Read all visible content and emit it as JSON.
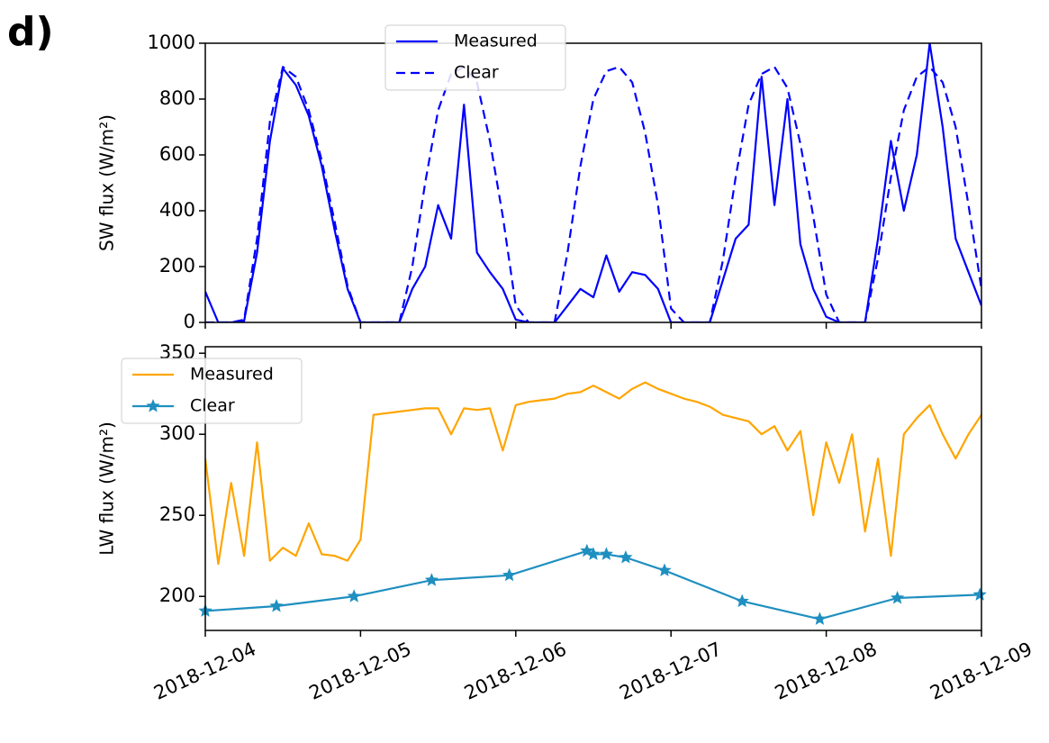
{
  "panel_label": "d)",
  "chart_data": [
    {
      "type": "line",
      "ylabel": "SW flux (W/m²)",
      "legend": "upper center",
      "xlim": [
        "2018-12-04",
        "2018-12-09"
      ],
      "xticks": [
        "2018-12-04",
        "2018-12-05",
        "2018-12-06",
        "2018-12-07",
        "2018-12-08",
        "2018-12-09"
      ],
      "ylim": [
        0,
        1000
      ],
      "yticks": [
        0,
        200,
        400,
        600,
        800,
        1000
      ],
      "x": [
        "2018-12-04 00:00",
        "2018-12-04 02:00",
        "2018-12-04 04:00",
        "2018-12-04 06:00",
        "2018-12-04 08:00",
        "2018-12-04 10:00",
        "2018-12-04 12:00",
        "2018-12-04 14:00",
        "2018-12-04 16:00",
        "2018-12-04 18:00",
        "2018-12-04 20:00",
        "2018-12-04 22:00",
        "2018-12-05 00:00",
        "2018-12-05 02:00",
        "2018-12-05 04:00",
        "2018-12-05 06:00",
        "2018-12-05 08:00",
        "2018-12-05 10:00",
        "2018-12-05 12:00",
        "2018-12-05 14:00",
        "2018-12-05 16:00",
        "2018-12-05 18:00",
        "2018-12-05 20:00",
        "2018-12-05 22:00",
        "2018-12-06 00:00",
        "2018-12-06 02:00",
        "2018-12-06 04:00",
        "2018-12-06 06:00",
        "2018-12-06 08:00",
        "2018-12-06 10:00",
        "2018-12-06 12:00",
        "2018-12-06 14:00",
        "2018-12-06 16:00",
        "2018-12-06 18:00",
        "2018-12-06 20:00",
        "2018-12-06 22:00",
        "2018-12-07 00:00",
        "2018-12-07 02:00",
        "2018-12-07 04:00",
        "2018-12-07 06:00",
        "2018-12-07 08:00",
        "2018-12-07 10:00",
        "2018-12-07 12:00",
        "2018-12-07 14:00",
        "2018-12-07 16:00",
        "2018-12-07 18:00",
        "2018-12-07 20:00",
        "2018-12-07 22:00",
        "2018-12-08 00:00",
        "2018-12-08 02:00",
        "2018-12-08 04:00",
        "2018-12-08 06:00",
        "2018-12-08 08:00",
        "2018-12-08 10:00",
        "2018-12-08 12:00",
        "2018-12-08 14:00",
        "2018-12-08 16:00",
        "2018-12-08 18:00",
        "2018-12-08 20:00",
        "2018-12-08 22:00",
        "2018-12-09 00:00"
      ],
      "series": [
        {
          "name": "Measured",
          "color": "#0000ff",
          "linestyle": "solid",
          "values": [
            110,
            0,
            0,
            5,
            250,
            650,
            910,
            850,
            740,
            560,
            330,
            120,
            0,
            0,
            0,
            0,
            120,
            200,
            420,
            300,
            780,
            250,
            180,
            120,
            10,
            0,
            0,
            0,
            60,
            120,
            90,
            240,
            110,
            180,
            170,
            120,
            0,
            0,
            0,
            0,
            150,
            300,
            350,
            880,
            420,
            800,
            280,
            120,
            20,
            0,
            0,
            0,
            300,
            650,
            400,
            600,
            1000,
            700,
            300,
            180,
            60
          ]
        },
        {
          "name": "Clear",
          "color": "#0000ff",
          "linestyle": "dashed",
          "values": [
            0,
            0,
            0,
            10,
            300,
            720,
            915,
            880,
            760,
            580,
            360,
            130,
            0,
            0,
            0,
            0,
            200,
            500,
            760,
            890,
            915,
            860,
            650,
            380,
            60,
            0,
            0,
            0,
            250,
            560,
            800,
            900,
            915,
            860,
            680,
            420,
            50,
            0,
            0,
            0,
            220,
            520,
            780,
            890,
            915,
            840,
            640,
            380,
            100,
            0,
            0,
            0,
            230,
            520,
            760,
            880,
            915,
            860,
            700,
            420,
            120
          ]
        }
      ]
    },
    {
      "type": "line",
      "ylabel": "LW flux (W/m²)",
      "legend": "upper left",
      "xlim": [
        "2018-12-04",
        "2018-12-09"
      ],
      "xticks": [
        "2018-12-04",
        "2018-12-05",
        "2018-12-06",
        "2018-12-07",
        "2018-12-08",
        "2018-12-09"
      ],
      "ylim": [
        179,
        354
      ],
      "yticks": [
        200,
        250,
        300,
        350
      ],
      "x": [
        "2018-12-04 00:00",
        "2018-12-04 02:00",
        "2018-12-04 04:00",
        "2018-12-04 06:00",
        "2018-12-04 08:00",
        "2018-12-04 10:00",
        "2018-12-04 12:00",
        "2018-12-04 14:00",
        "2018-12-04 16:00",
        "2018-12-04 18:00",
        "2018-12-04 20:00",
        "2018-12-04 22:00",
        "2018-12-05 00:00",
        "2018-12-05 02:00",
        "2018-12-05 04:00",
        "2018-12-05 06:00",
        "2018-12-05 08:00",
        "2018-12-05 10:00",
        "2018-12-05 12:00",
        "2018-12-05 14:00",
        "2018-12-05 16:00",
        "2018-12-05 18:00",
        "2018-12-05 20:00",
        "2018-12-05 22:00",
        "2018-12-06 00:00",
        "2018-12-06 02:00",
        "2018-12-06 04:00",
        "2018-12-06 06:00",
        "2018-12-06 08:00",
        "2018-12-06 10:00",
        "2018-12-06 12:00",
        "2018-12-06 14:00",
        "2018-12-06 16:00",
        "2018-12-06 18:00",
        "2018-12-06 20:00",
        "2018-12-06 22:00",
        "2018-12-07 00:00",
        "2018-12-07 02:00",
        "2018-12-07 04:00",
        "2018-12-07 06:00",
        "2018-12-07 08:00",
        "2018-12-07 10:00",
        "2018-12-07 12:00",
        "2018-12-07 14:00",
        "2018-12-07 16:00",
        "2018-12-07 18:00",
        "2018-12-07 20:00",
        "2018-12-07 22:00",
        "2018-12-08 00:00",
        "2018-12-08 02:00",
        "2018-12-08 04:00",
        "2018-12-08 06:00",
        "2018-12-08 08:00",
        "2018-12-08 10:00",
        "2018-12-08 12:00",
        "2018-12-08 14:00",
        "2018-12-08 16:00",
        "2018-12-08 18:00",
        "2018-12-08 20:00",
        "2018-12-08 22:00",
        "2018-12-09 00:00"
      ],
      "series": [
        {
          "name": "Measured",
          "color": "#ffa500",
          "linestyle": "solid",
          "values": [
            285,
            220,
            270,
            225,
            295,
            222,
            230,
            225,
            245,
            226,
            225,
            222,
            235,
            312,
            313,
            314,
            315,
            316,
            316,
            300,
            316,
            315,
            316,
            290,
            318,
            320,
            321,
            322,
            325,
            326,
            330,
            326,
            322,
            328,
            332,
            328,
            325,
            322,
            320,
            317,
            312,
            310,
            308,
            300,
            305,
            290,
            302,
            250,
            295,
            270,
            300,
            240,
            285,
            225,
            300,
            310,
            318,
            300,
            285,
            300,
            312
          ]
        },
        {
          "name": "Clear",
          "color": "#1f8fc0",
          "linestyle": "solid",
          "marker": "star",
          "x": [
            "2018-12-04 00:00",
            "2018-12-04 11:00",
            "2018-12-04 23:00",
            "2018-12-05 11:00",
            "2018-12-05 23:00",
            "2018-12-06 11:00",
            "2018-12-06 12:00",
            "2018-12-06 14:00",
            "2018-12-06 17:00",
            "2018-12-06 23:00",
            "2018-12-07 11:00",
            "2018-12-07 23:00",
            "2018-12-08 11:00",
            "2018-12-08 23:45"
          ],
          "values": [
            191,
            194,
            200,
            210,
            213,
            228,
            226,
            226,
            224,
            216,
            197,
            186,
            199,
            201
          ]
        }
      ]
    }
  ]
}
